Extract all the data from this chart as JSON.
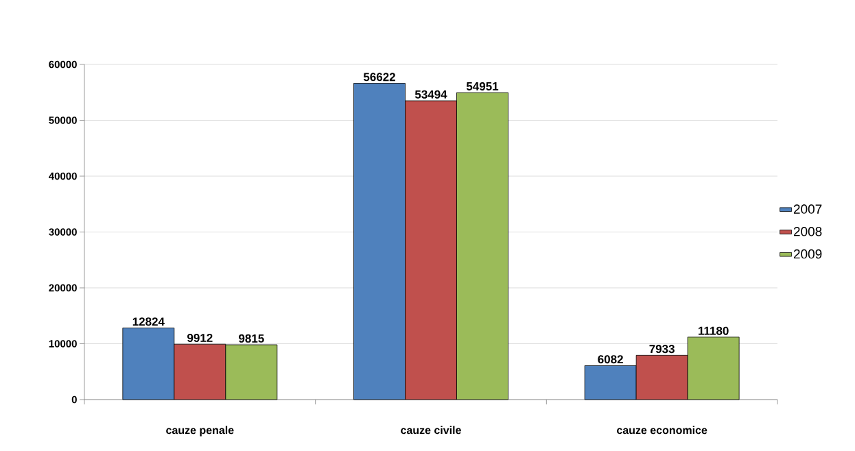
{
  "chart_data": {
    "type": "bar",
    "categories": [
      "cauze penale",
      "cauze civile",
      "cauze economice"
    ],
    "series": [
      {
        "name": "2007",
        "color": "#4f81bd",
        "values": [
          12824,
          56622,
          6082
        ]
      },
      {
        "name": "2008",
        "color": "#c0504d",
        "values": [
          9912,
          53494,
          7933
        ]
      },
      {
        "name": "2009",
        "color": "#9bbb59",
        "values": [
          9815,
          54951,
          11180
        ]
      }
    ],
    "ylim": [
      0,
      60000
    ],
    "yticks": [
      0,
      10000,
      20000,
      30000,
      40000,
      50000,
      60000
    ],
    "grid": "y",
    "legend": "right",
    "data_labels": true
  }
}
